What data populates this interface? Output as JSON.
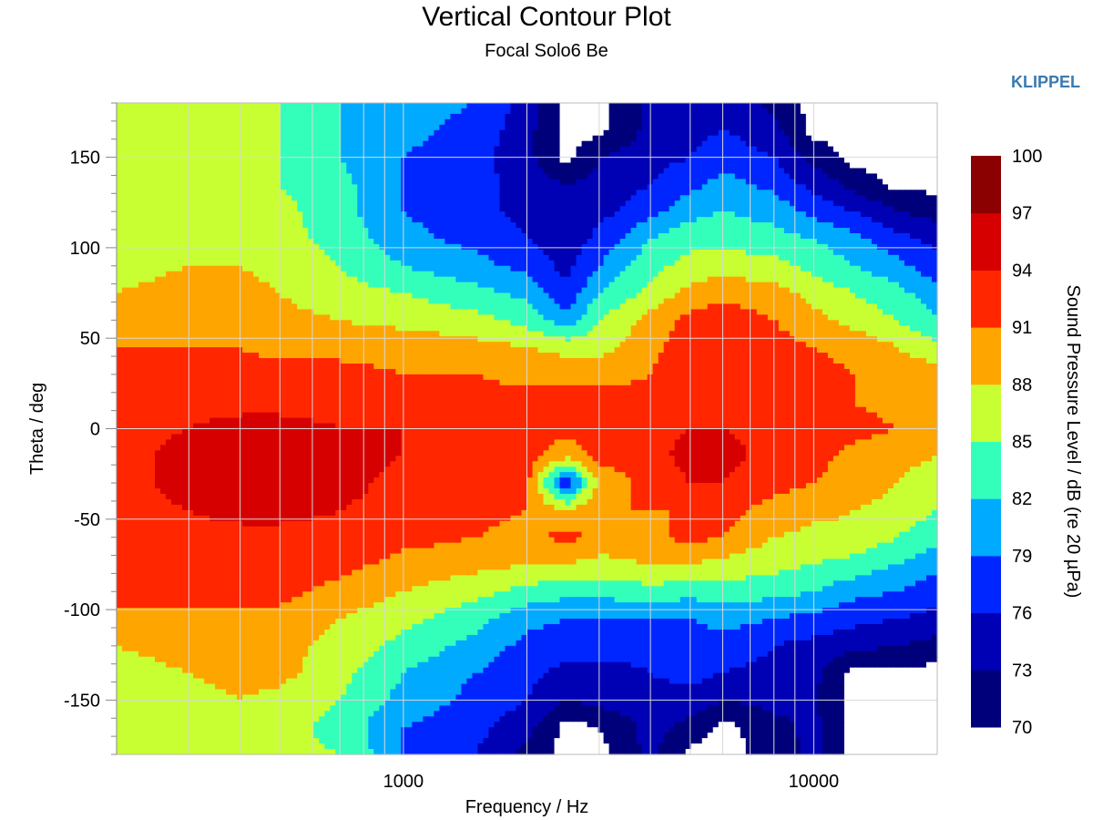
{
  "title": "Vertical Contour Plot",
  "subtitle": "Focal Solo6 Be",
  "brand": "KLIPPEL",
  "colors": {
    "brand": "#3a7ab0",
    "grid": "#d8d8d8",
    "below_range": "#ffffff"
  },
  "chart_data": {
    "type": "heatmap",
    "xlabel": "Frequency / Hz",
    "ylabel": "Theta / deg",
    "colorbar_label": "Sound Pressure Level / dB (re 20 µPa)",
    "x_scale": "log",
    "xlim": [
      200,
      20000
    ],
    "ylim": [
      -180,
      180
    ],
    "x_ticks": [
      1000,
      10000
    ],
    "x_tick_labels": [
      "1000",
      "10000"
    ],
    "y_ticks": [
      150,
      100,
      50,
      0,
      -50,
      -100,
      -150
    ],
    "y_tick_labels": [
      "150",
      "100",
      "50",
      "0",
      "-50",
      "-100",
      "-150"
    ],
    "grid": true,
    "colorbar": {
      "levels": [
        70,
        73,
        76,
        79,
        82,
        85,
        88,
        91,
        94,
        97,
        100
      ],
      "labels": [
        "100",
        "97",
        "94",
        "91",
        "88",
        "85",
        "82",
        "79",
        "76",
        "73",
        "70"
      ],
      "colors": [
        "#00007a",
        "#0000b4",
        "#0026ff",
        "#00aaff",
        "#33ffbb",
        "#c8ff33",
        "#ffa500",
        "#ff2600",
        "#d60000",
        "#8b0000"
      ]
    },
    "theta": [
      -180,
      -165,
      -150,
      -135,
      -120,
      -105,
      -90,
      -75,
      -60,
      -45,
      -30,
      -15,
      0,
      15,
      30,
      45,
      60,
      75,
      90,
      105,
      120,
      135,
      150,
      165,
      180
    ],
    "frequency": [
      200,
      300,
      400,
      500,
      700,
      1000,
      1500,
      2000,
      2500,
      3000,
      4000,
      5000,
      6000,
      8000,
      10000,
      12500,
      16000,
      20000
    ],
    "spl": [
      [
        86,
        86,
        86,
        86,
        85,
        79,
        76,
        72,
        69,
        69,
        74,
        69,
        69,
        71,
        74,
        69,
        69,
        69
      ],
      [
        86,
        86,
        86,
        86,
        84,
        79,
        77,
        74,
        69,
        70,
        74,
        72,
        69,
        72,
        74,
        69,
        69,
        69
      ],
      [
        87,
        87,
        88,
        87,
        85,
        81,
        78,
        76,
        73,
        74,
        75,
        75,
        73,
        74,
        73,
        69,
        69,
        69
      ],
      [
        87,
        88,
        89,
        89,
        86,
        82,
        79,
        77,
        75,
        75,
        76,
        77,
        76,
        75,
        74,
        69,
        69,
        69
      ],
      [
        88,
        89,
        89,
        89,
        87,
        84,
        81,
        78,
        77,
        77,
        77,
        77,
        78,
        76,
        75,
        74,
        73,
        72
      ],
      [
        90,
        90,
        90,
        90,
        88,
        86,
        83,
        80,
        79,
        79,
        79,
        79,
        80,
        79,
        78,
        77,
        76,
        75
      ],
      [
        92,
        92,
        92,
        92,
        90,
        88,
        86,
        84,
        83,
        83,
        84,
        83,
        84,
        83,
        82,
        80,
        79,
        77
      ],
      [
        93,
        93,
        93,
        93,
        92,
        90,
        89,
        88,
        88,
        87,
        88,
        88,
        87,
        86,
        85,
        84,
        82,
        80
      ],
      [
        93,
        93,
        93,
        93,
        93,
        92,
        91,
        90,
        92,
        90,
        90,
        92,
        91,
        88,
        87,
        87,
        85,
        83
      ],
      [
        93,
        94,
        95,
        95,
        94,
        93,
        92,
        91,
        88,
        91,
        91,
        91,
        92,
        90,
        89,
        88,
        87,
        85
      ],
      [
        93,
        95,
        96,
        96,
        95,
        93,
        93,
        92,
        76,
        89,
        92,
        94,
        94,
        92,
        91,
        90,
        88,
        86
      ],
      [
        93,
        95,
        96,
        96,
        95,
        94,
        93,
        92,
        89,
        92,
        93,
        95,
        95,
        93,
        92,
        90,
        89,
        88
      ],
      [
        93,
        94,
        95,
        95,
        94,
        94,
        93,
        93,
        92,
        93,
        93,
        94,
        94,
        93,
        93,
        92,
        91,
        90
      ],
      [
        93,
        93,
        93,
        93,
        93,
        93,
        92,
        92,
        92,
        92,
        92,
        93,
        94,
        93,
        92,
        91,
        90,
        90
      ],
      [
        92,
        92,
        92,
        92,
        92,
        91,
        91,
        90,
        90,
        90,
        91,
        94,
        94,
        93,
        92,
        91,
        90,
        89
      ],
      [
        91,
        91,
        91,
        90,
        90,
        90,
        89,
        88,
        87,
        87,
        90,
        93,
        94,
        92,
        91,
        90,
        88,
        86
      ],
      [
        90,
        90,
        90,
        89,
        88,
        87,
        86,
        84,
        80,
        85,
        89,
        92,
        93,
        91,
        89,
        87,
        85,
        82
      ],
      [
        88,
        89,
        89,
        88,
        86,
        85,
        83,
        81,
        77,
        82,
        86,
        89,
        90,
        89,
        87,
        85,
        83,
        80
      ],
      [
        87,
        88,
        88,
        87,
        85,
        82,
        80,
        78,
        75,
        79,
        84,
        86,
        87,
        86,
        84,
        82,
        80,
        77
      ],
      [
        87,
        87,
        87,
        86,
        84,
        80,
        78,
        76,
        74,
        77,
        82,
        84,
        84,
        83,
        82,
        80,
        77,
        75
      ],
      [
        86,
        87,
        86,
        86,
        83,
        79,
        77,
        75,
        73,
        75,
        78,
        81,
        82,
        81,
        78,
        76,
        73,
        72
      ],
      [
        86,
        86,
        86,
        85,
        83,
        79,
        77,
        75,
        73,
        74,
        76,
        78,
        80,
        78,
        75,
        72,
        69,
        69
      ],
      [
        86,
        86,
        86,
        85,
        82,
        79,
        77,
        74,
        69,
        73,
        75,
        76,
        78,
        76,
        72,
        69,
        69,
        69
      ],
      [
        86,
        86,
        86,
        85,
        82,
        80,
        78,
        74,
        69,
        69,
        74,
        75,
        76,
        74,
        69,
        69,
        69,
        69
      ],
      [
        86,
        86,
        86,
        85,
        82,
        80,
        79,
        75,
        69,
        69,
        74,
        75,
        75,
        72,
        69,
        69,
        69,
        69
      ]
    ]
  }
}
